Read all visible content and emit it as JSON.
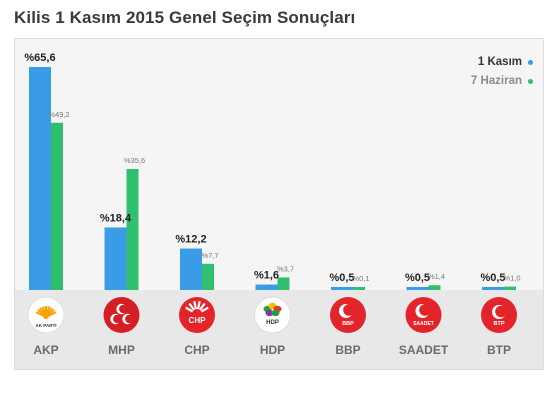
{
  "title": "Kilis 1 Kasım 2015 Genel Seçim Sonuçları",
  "colors": {
    "nov": "#3a9be6",
    "jun": "#2fbf6e"
  },
  "legend": [
    {
      "label": "1 Kasım",
      "color": "#3a9be6",
      "text_color": "#333333"
    },
    {
      "label": "7 Haziran",
      "color": "#2fbf6e",
      "text_color": "#8c8c8c"
    }
  ],
  "chart_data": {
    "type": "bar",
    "categories": [
      "AKP",
      "MHP",
      "CHP",
      "HDP",
      "BBP",
      "SAADET",
      "BTP"
    ],
    "series": [
      {
        "name": "1 Kasım",
        "values": [
          65.6,
          18.4,
          12.2,
          1.6,
          0.5,
          0.5,
          0.5
        ],
        "labels": [
          "%65,6",
          "%18,4",
          "%12,2",
          "%1,6",
          "%0,5",
          "%0,5",
          "%0,5"
        ]
      },
      {
        "name": "7 Haziran",
        "values": [
          49.2,
          35.6,
          7.7,
          3.7,
          0.1,
          1.4,
          1.0
        ],
        "labels": [
          "%49,2",
          "%35,6",
          "%7,7",
          "%3,7",
          "%0,1",
          "%1,4",
          "%1,0"
        ]
      }
    ],
    "ylim": [
      0,
      70
    ],
    "grid": false,
    "legend_position": "top-right"
  },
  "parties": [
    {
      "name": "AKP",
      "logo_text": "AK PARTİ",
      "logo": "akp-logo"
    },
    {
      "name": "MHP",
      "logo_text": "",
      "logo": "mhp-logo"
    },
    {
      "name": "CHP",
      "logo_text": "CHP",
      "logo": "chp-logo"
    },
    {
      "name": "HDP",
      "logo_text": "HDP",
      "logo": "hdp-logo"
    },
    {
      "name": "BBP",
      "logo_text": "BBP",
      "logo": "bbp-logo"
    },
    {
      "name": "SAADET",
      "logo_text": "SAADET",
      "logo": "saadet-logo"
    },
    {
      "name": "BTP",
      "logo_text": "BTP",
      "logo": "btp-logo"
    }
  ]
}
